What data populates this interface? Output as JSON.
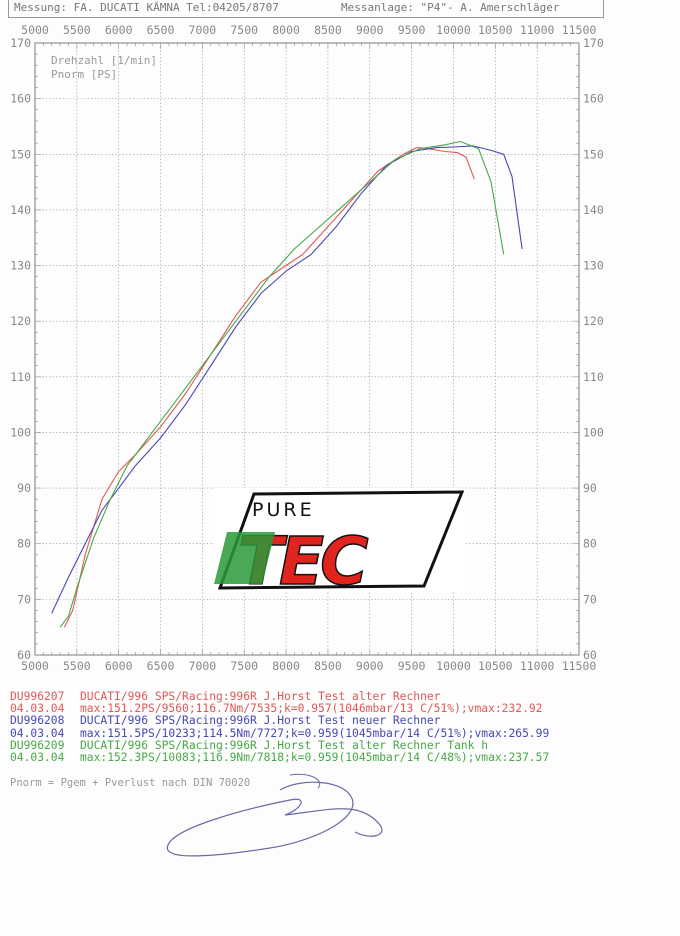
{
  "header": {
    "left": "Messung: FA. DUCATI KÄMNA  Tel:04205/8707",
    "right": "Messanlage: \"P4\"- A. Amerschläger"
  },
  "chart_data": {
    "type": "line",
    "axis_labels": [
      "Drehzahl [1/min]",
      "Pnorm [PS]"
    ],
    "xlim": [
      5000,
      11500
    ],
    "ylim": [
      60,
      170
    ],
    "x_ticks": [
      5000,
      5500,
      6000,
      6500,
      7000,
      7500,
      8000,
      8500,
      9000,
      9500,
      10000,
      10500,
      11000,
      11500
    ],
    "y_ticks": [
      60,
      70,
      80,
      90,
      100,
      110,
      120,
      130,
      140,
      150,
      160,
      170
    ],
    "grid": true,
    "series": [
      {
        "name": "DU996207",
        "color": "#e05858",
        "x": [
          5350,
          5450,
          5600,
          5800,
          6000,
          6200,
          6500,
          6800,
          7100,
          7400,
          7700,
          8000,
          8200,
          8500,
          8800,
          9100,
          9400,
          9560,
          9700,
          9900,
          10050,
          10150,
          10250
        ],
        "y": [
          65,
          68,
          78,
          88,
          93,
          96,
          101,
          107,
          114,
          121,
          127,
          130,
          132,
          137,
          142,
          147,
          150,
          151.2,
          151,
          150.5,
          150.3,
          149.5,
          145.5
        ]
      },
      {
        "name": "DU996208",
        "color": "#4848b4",
        "x": [
          5200,
          5400,
          5600,
          5800,
          6000,
          6200,
          6500,
          6800,
          7100,
          7400,
          7700,
          8000,
          8300,
          8600,
          8900,
          9200,
          9500,
          9800,
          10000,
          10233,
          10450,
          10600,
          10700,
          10820
        ],
        "y": [
          67.5,
          74,
          80,
          86,
          90,
          94,
          99,
          105,
          112,
          119,
          125,
          129,
          132,
          137,
          143,
          148,
          150.5,
          151.2,
          151.3,
          151.5,
          150.7,
          150,
          146,
          133
        ]
      },
      {
        "name": "DU996209",
        "color": "#48a848",
        "x": [
          5300,
          5400,
          5500,
          5700,
          5900,
          6100,
          6300,
          6600,
          6900,
          7200,
          7500,
          7800,
          8100,
          8400,
          8700,
          9000,
          9300,
          9600,
          9900,
          10083,
          10300,
          10450,
          10600
        ],
        "y": [
          65,
          67,
          72,
          81,
          88,
          94,
          98,
          104,
          110,
          116,
          122,
          128,
          133,
          137,
          141,
          145,
          149,
          151,
          151.7,
          152.3,
          151,
          145,
          132
        ]
      }
    ]
  },
  "legend": [
    {
      "color": "#e05858",
      "code": "DU996207",
      "desc": "DUCATI/996 SPS/Racing:996R J.Horst Test alter Rechner",
      "date": "04.03.04",
      "stats": "max:151.2PS/9560;116.7Nm/7535;k=0.957(1046mbar/13 C/51%);vmax:232.92"
    },
    {
      "color": "#4848b4",
      "code": "DU996208",
      "desc": "DUCATI/996 SPS/Racing:996R J.Horst Test neuer Rechner",
      "date": "04.03.04",
      "stats": "max:151.5PS/10233;114.5Nm/7727;k=0.959(1045mbar/14 C/51%);vmax:265.99"
    },
    {
      "color": "#48a848",
      "code": "DU996209",
      "desc": "DUCATI/996 SPS/Racing:996R J.Horst Test alter Rechner Tank h",
      "date": "04.03.04",
      "stats": "max:152.3PS/10083;116.9Nm/7818;k=0.959(1045mbar/14 C/48%);vmax:237.57"
    }
  ],
  "footnote": "Pnorm = Pgem + Pverlust nach DIN 70020",
  "logo": {
    "top": "PURE",
    "bottom": "TEC",
    "green": "#2a9a3a",
    "red": "#e0241e"
  }
}
